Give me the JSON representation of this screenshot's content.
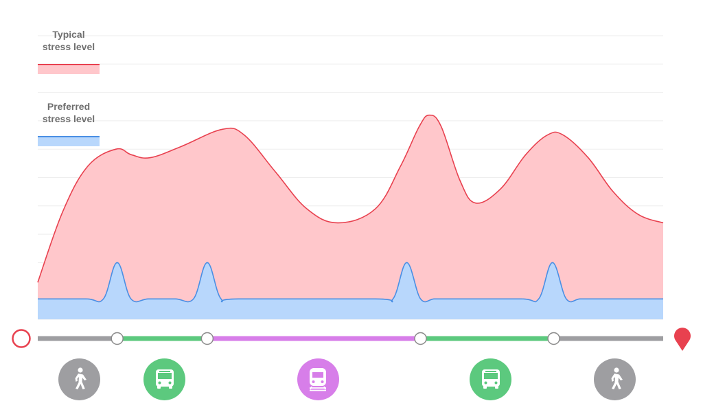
{
  "legend": {
    "typical": {
      "label_line1": "Typical",
      "label_line2": "stress level"
    },
    "preferred": {
      "label_line1": "Preferred",
      "label_line2": "stress level"
    }
  },
  "colors": {
    "typical_line": "#e8414f",
    "typical_fill": "#ffc7cb",
    "preferred_line": "#4a8fe4",
    "preferred_fill": "#b8d7fc",
    "walk": "#9e9ea1",
    "bus": "#5cc97e",
    "train": "#d77ee9",
    "start_marker": "#e8414f",
    "end_marker": "#e8414f",
    "stop_node_fill": "#ffffff",
    "stop_node_stroke": "#8a8a8a",
    "gridline": "#eeeeee"
  },
  "chart_data": {
    "type": "area",
    "title": "",
    "xlabel": "",
    "ylabel": "",
    "xlim": [
      0,
      100
    ],
    "ylim": [
      0,
      10
    ],
    "grid": true,
    "legend_position": "top-left",
    "series": [
      {
        "name": "Typical stress level",
        "x": [
          0,
          4,
          8,
          12.5,
          15,
          18,
          23,
          29.5,
          33,
          38,
          43,
          48,
          54,
          58,
          61,
          62.6,
          64.5,
          67.5,
          70,
          74,
          78,
          81.5,
          84,
          88,
          92,
          96,
          100
        ],
        "y": [
          1.3,
          3.8,
          5.4,
          6.0,
          5.8,
          5.7,
          6.1,
          6.7,
          6.5,
          5.2,
          3.9,
          3.4,
          3.9,
          5.4,
          6.8,
          7.2,
          6.8,
          4.9,
          4.1,
          4.6,
          5.8,
          6.5,
          6.5,
          5.7,
          4.5,
          3.7,
          3.4
        ]
      },
      {
        "name": "Preferred stress level",
        "x": [
          0,
          7.7,
          10.5,
          12.7,
          14.9,
          17.7,
          22,
          24.9,
          27.1,
          29.3,
          32.1,
          54,
          56.8,
          59,
          61.2,
          63.4,
          66.2,
          77.3,
          80.1,
          82.3,
          84.5,
          86.7,
          89.5,
          100
        ],
        "y": [
          0,
          0,
          0,
          1.28,
          0,
          0,
          0,
          0,
          1.28,
          0,
          0,
          0,
          0,
          1.28,
          0,
          0,
          0,
          0,
          0,
          1.28,
          0,
          0,
          0,
          0
        ],
        "baseline": 0.72
      }
    ],
    "route": {
      "start_icon": "origin-ring-icon",
      "end_icon": "destination-pin-icon",
      "segments": [
        {
          "mode": "walk",
          "from": 0,
          "to": 12.7
        },
        {
          "mode": "bus",
          "from": 12.7,
          "to": 27.1
        },
        {
          "mode": "train",
          "from": 27.1,
          "to": 61.2
        },
        {
          "mode": "bus",
          "from": 61.2,
          "to": 82.5
        },
        {
          "mode": "walk",
          "from": 82.5,
          "to": 100
        }
      ],
      "stops": [
        12.7,
        27.1,
        61.2,
        82.5
      ],
      "mode_icons": [
        {
          "mode": "walk",
          "icon": "walking-person-icon",
          "at": 6.6
        },
        {
          "mode": "bus",
          "icon": "bus-icon",
          "at": 20.3
        },
        {
          "mode": "train",
          "icon": "train-icon",
          "at": 44.8
        },
        {
          "mode": "bus",
          "icon": "bus-icon",
          "at": 72.4
        },
        {
          "mode": "walk",
          "icon": "walking-person-icon",
          "at": 92.3
        }
      ]
    }
  }
}
